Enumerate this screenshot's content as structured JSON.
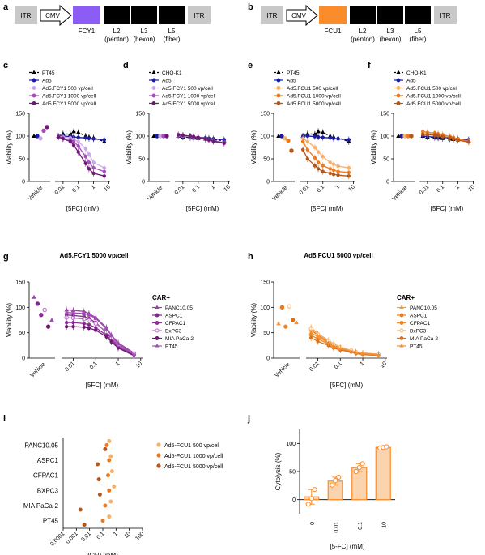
{
  "colors": {
    "fcy1": "#8b5cf6",
    "fcu1": "#fb8c2c",
    "purples": [
      "#c9a9e6",
      "#a64dbf",
      "#6e1a72"
    ],
    "oranges": [
      "#f7b06a",
      "#ee7a1f",
      "#b5581a"
    ],
    "pt45": "#000000",
    "ad5": "#1a1aa6"
  },
  "panel_labels": [
    "a",
    "b",
    "c",
    "d",
    "e",
    "f",
    "g",
    "h",
    "i",
    "j"
  ],
  "constructs": [
    {
      "itr_left": "ITR",
      "promoter": "CMV",
      "gene": "FCY1",
      "l2": "L2",
      "l2_sub": "(penton)",
      "l3": "L3",
      "l3_sub": "(hexon)",
      "l5": "L5",
      "l5_sub": "(fiber)",
      "itr_right": "ITR"
    },
    {
      "itr_left": "ITR",
      "promoter": "CMV",
      "gene": "FCU1",
      "l2": "L2",
      "l2_sub": "(penton)",
      "l3": "L3",
      "l3_sub": "(hexon)",
      "l5": "L5",
      "l5_sub": "(fiber)",
      "itr_right": "ITR"
    }
  ],
  "common": {
    "ylabel": "Viability (%)",
    "xlabel": "[5FC] (mM)",
    "vehicle": "Vehicle",
    "yticks": [
      "0",
      "50",
      "100",
      "150"
    ],
    "xticks": [
      "0.01",
      "0.1",
      "1",
      "10"
    ],
    "car": "CAR+"
  },
  "chart_data": [
    {
      "panel": "c",
      "type": "line",
      "ylim": [
        0,
        150
      ],
      "x_log": true,
      "legend": [
        "PT45",
        "Ad5",
        "Ad5.FCY1 500 vp/cell",
        "Ad5.FCY1 1000 vp/cell",
        "Ad5.FCY1 5000 vp/cell"
      ],
      "vehicle": [
        100,
        100,
        95,
        112,
        120
      ],
      "x": [
        0.005,
        0.01,
        0.03,
        0.05,
        0.1,
        0.3,
        0.5,
        1,
        5
      ],
      "series": [
        {
          "values": [
            100,
            105,
            104,
            110,
            108,
            100,
            98,
            96,
            88
          ]
        },
        {
          "values": [
            100,
            100,
            99,
            98,
            97,
            96,
            95,
            94,
            92
          ]
        },
        {
          "values": [
            100,
            98,
            96,
            93,
            88,
            72,
            60,
            42,
            30
          ]
        },
        {
          "values": [
            100,
            95,
            92,
            88,
            78,
            55,
            42,
            30,
            22
          ]
        },
        {
          "values": [
            98,
            94,
            88,
            80,
            65,
            40,
            28,
            18,
            12
          ]
        }
      ]
    },
    {
      "panel": "d",
      "type": "line",
      "ylim": [
        0,
        150
      ],
      "x_log": true,
      "legend": [
        "CHO-K1",
        "Ad5",
        "Ad5.FCY1 500 vp/cell",
        "Ad5.FCY1 1000 vp/cell",
        "Ad5.FCY1 5000 vp/cell"
      ],
      "vehicle": [
        100,
        100,
        100,
        100,
        100
      ],
      "x": [
        0.005,
        0.01,
        0.03,
        0.05,
        0.1,
        0.3,
        0.5,
        1,
        5
      ],
      "series": [
        {
          "values": [
            100,
            98,
            97,
            96,
            95,
            94,
            93,
            92,
            90
          ]
        },
        {
          "values": [
            100,
            99,
            98,
            98,
            97,
            96,
            95,
            94,
            92
          ]
        },
        {
          "values": [
            101,
            100,
            99,
            98,
            96,
            94,
            92,
            90,
            86
          ]
        },
        {
          "values": [
            102,
            101,
            100,
            98,
            96,
            93,
            91,
            88,
            84
          ]
        },
        {
          "values": [
            103,
            102,
            100,
            99,
            97,
            94,
            92,
            89,
            85
          ]
        }
      ]
    },
    {
      "panel": "e",
      "type": "line",
      "ylim": [
        0,
        150
      ],
      "x_log": true,
      "legend": [
        "PT45",
        "Ad5",
        "Ad5.FCU1 500 vp/cell",
        "Ad5.FCU1 1000 vp/cell",
        "Ad5.FCU1 5000 vp/cell"
      ],
      "vehicle": [
        100,
        100,
        95,
        90,
        68
      ],
      "x": [
        0.005,
        0.01,
        0.03,
        0.05,
        0.1,
        0.3,
        0.5,
        1,
        5
      ],
      "series": [
        {
          "values": [
            100,
            105,
            104,
            110,
            108,
            100,
            98,
            96,
            88
          ]
        },
        {
          "values": [
            100,
            100,
            99,
            98,
            97,
            96,
            95,
            94,
            92
          ]
        },
        {
          "values": [
            95,
            88,
            75,
            65,
            55,
            42,
            38,
            34,
            30
          ]
        },
        {
          "values": [
            88,
            70,
            52,
            42,
            35,
            28,
            25,
            22,
            20
          ]
        },
        {
          "values": [
            70,
            50,
            35,
            28,
            22,
            18,
            16,
            14,
            12
          ]
        }
      ]
    },
    {
      "panel": "f",
      "type": "line",
      "ylim": [
        0,
        150
      ],
      "x_log": true,
      "legend": [
        "CHO-K1",
        "Ad5",
        "Ad5.FCU1 500 vp/cell",
        "Ad5.FCU1 1000 vp/cell",
        "Ad5.FCU1 5000 vp/cell"
      ],
      "vehicle": [
        100,
        100,
        100,
        100,
        100
      ],
      "x": [
        0.005,
        0.01,
        0.03,
        0.05,
        0.1,
        0.3,
        0.5,
        1,
        5
      ],
      "series": [
        {
          "values": [
            100,
            98,
            97,
            96,
            95,
            94,
            93,
            92,
            90
          ]
        },
        {
          "values": [
            100,
            99,
            98,
            98,
            97,
            96,
            95,
            94,
            92
          ]
        },
        {
          "values": [
            106,
            105,
            104,
            103,
            101,
            98,
            96,
            93,
            88
          ]
        },
        {
          "values": [
            110,
            108,
            107,
            105,
            103,
            99,
            97,
            94,
            89
          ]
        },
        {
          "values": [
            104,
            103,
            102,
            101,
            99,
            96,
            94,
            91,
            87
          ]
        }
      ]
    },
    {
      "panel": "g",
      "type": "line",
      "ylim": [
        0,
        150
      ],
      "x_log": true,
      "title": "Ad5.FCY1 5000 vp/cell",
      "legend": [
        "PANC10.05",
        "ASPC1",
        "CFPAC1",
        "BxPC3",
        "MIA PaCa-2",
        "PT45"
      ],
      "vehicle": [
        120,
        107,
        85,
        95,
        62,
        75
      ],
      "x": [
        0.005,
        0.01,
        0.03,
        0.05,
        0.1,
        0.3,
        0.5,
        1,
        5
      ],
      "series": [
        {
          "values": [
            95,
            94,
            92,
            88,
            80,
            60,
            45,
            30,
            10
          ]
        },
        {
          "values": [
            85,
            84,
            82,
            78,
            70,
            50,
            38,
            25,
            8
          ]
        },
        {
          "values": [
            70,
            70,
            68,
            66,
            60,
            45,
            35,
            22,
            6
          ]
        },
        {
          "values": [
            80,
            79,
            77,
            74,
            68,
            52,
            40,
            26,
            9
          ]
        },
        {
          "values": [
            62,
            62,
            61,
            59,
            55,
            42,
            32,
            20,
            5
          ]
        },
        {
          "values": [
            90,
            89,
            88,
            85,
            78,
            58,
            44,
            28,
            8
          ]
        }
      ]
    },
    {
      "panel": "h",
      "type": "line",
      "ylim": [
        0,
        150
      ],
      "x_log": true,
      "title": "Ad5.FCU1 5000 vp/cell",
      "legend": [
        "PANC10.05",
        "ASPC1",
        "CFPAC1",
        "BxPC3",
        "MIA PaCa-2",
        "PT45"
      ],
      "vehicle": [
        68,
        100,
        62,
        102,
        75,
        70
      ],
      "x": [
        0.005,
        0.01,
        0.03,
        0.05,
        0.1,
        0.3,
        0.5,
        1,
        5
      ],
      "series": [
        {
          "values": [
            60,
            48,
            35,
            28,
            22,
            15,
            12,
            10,
            8
          ]
        },
        {
          "values": [
            55,
            45,
            32,
            25,
            20,
            14,
            11,
            9,
            7
          ]
        },
        {
          "values": [
            45,
            38,
            28,
            22,
            18,
            13,
            10,
            8,
            6
          ]
        },
        {
          "values": [
            58,
            47,
            34,
            27,
            21,
            15,
            12,
            9,
            7
          ]
        },
        {
          "values": [
            40,
            33,
            25,
            20,
            16,
            12,
            9,
            7,
            5
          ]
        },
        {
          "values": [
            50,
            42,
            30,
            24,
            19,
            14,
            11,
            9,
            6
          ]
        }
      ]
    },
    {
      "panel": "i",
      "type": "scatter",
      "xlabel": "IC50 (mM)",
      "xticks": [
        "0.0001",
        "0.001",
        "0.01",
        "0.1",
        "1",
        "10",
        "100"
      ],
      "categories": [
        "PANC10.05",
        "ASPC1",
        "CFPAC1",
        "BXPC3",
        "MIA PaCa-2",
        "PT45"
      ],
      "series": [
        {
          "name": "Ad5-FCU1 500 vp/cell",
          "values": [
            0.3,
            0.4,
            0.5,
            0.7,
            0.4,
            0.3
          ]
        },
        {
          "name": "Ad5-FCU1 1000 vp/cell",
          "values": [
            0.2,
            0.3,
            0.25,
            0.3,
            0.15,
            0.1
          ]
        },
        {
          "name": "Ad5-FCU1 5000 vp/cell",
          "values": [
            0.15,
            0.04,
            0.05,
            0.06,
            0.002,
            0.004
          ]
        }
      ]
    },
    {
      "panel": "j",
      "type": "bar",
      "ylabel": "Cytolysis (%)",
      "xlabel": "[5-FC] (mM)",
      "categories": [
        "0",
        "0.01",
        "0.1",
        "10"
      ],
      "values": [
        5,
        33,
        57,
        93
      ],
      "points": [
        [
          -8,
          2,
          18
        ],
        [
          26,
          34,
          40
        ],
        [
          50,
          57,
          64
        ],
        [
          92,
          93,
          94
        ]
      ],
      "ylim": [
        -25,
        125
      ],
      "yticks": [
        "0",
        "50",
        "100"
      ]
    }
  ]
}
